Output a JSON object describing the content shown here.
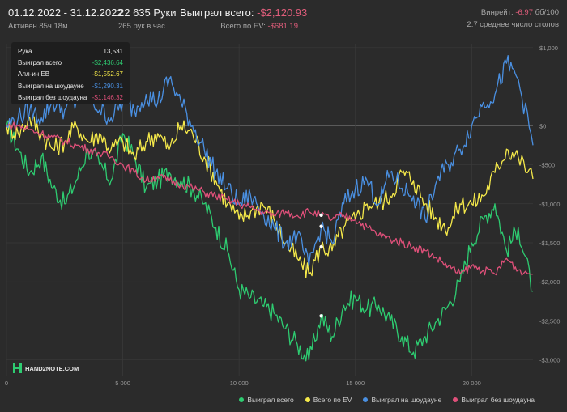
{
  "header": {
    "date_range": "01.12.2022 - 31.12.2022",
    "active": "Активен 85ч 18м",
    "hands": "22 635 Руки",
    "hands_rate": "265 рук в час",
    "won_label": "Выиграл всего:",
    "won_value": "-$2,120.93",
    "ev_label": "Всего по EV:",
    "ev_value": "-$681.19",
    "winrate_label": "Винрейт:",
    "winrate_value": "-6.97",
    "winrate_per": "бб/100",
    "tables_avg": "2.7 среднее число столов"
  },
  "tooltip": {
    "rows": [
      {
        "label": "Рука",
        "value": "13,531",
        "color": "#f0f0f0"
      },
      {
        "label": "Выиграл всего",
        "value": "-$2,436.64",
        "color": "#2ecc71"
      },
      {
        "label": "Алл-ин ЕВ",
        "value": "-$1,552.67",
        "color": "#f5e94a"
      },
      {
        "label": "Выиграл на шоудауне",
        "value": "-$1,290.31",
        "color": "#4a90e2"
      },
      {
        "label": "Выиграл без шоудауна",
        "value": "-$1,146.32",
        "color": "#e0507a"
      }
    ]
  },
  "logo_text": "HAND2NOTE.COM",
  "chart_data": {
    "type": "line",
    "x_ticks": [
      0,
      5000,
      10000,
      15000,
      20000
    ],
    "x_tick_labels": [
      "0",
      "5 000",
      "10 000",
      "15 000",
      "20 000"
    ],
    "y_ticks": [
      1000,
      0,
      -500,
      -1000,
      -1500,
      -2000,
      -2500,
      -3000
    ],
    "y_tick_labels": [
      "$1,000",
      "$0",
      "-$500",
      "-$1,000",
      "-$1,500",
      "-$2,000",
      "-$2,500",
      "-$3,000"
    ],
    "xlim": [
      0,
      22635
    ],
    "ylim": [
      -3200,
      1050
    ],
    "legend_position": "bottom-right",
    "series": [
      {
        "name": "Выиграл всего",
        "color": "#2ecc71",
        "x": [
          0,
          500,
          1000,
          1500,
          2000,
          2500,
          3000,
          3500,
          4000,
          4500,
          5000,
          5500,
          6000,
          6500,
          7000,
          7500,
          8000,
          8500,
          9000,
          9500,
          10000,
          10500,
          11000,
          11500,
          12000,
          12500,
          13000,
          13531,
          14000,
          14500,
          15000,
          15500,
          16000,
          16500,
          17000,
          17500,
          18000,
          18500,
          19000,
          19500,
          20000,
          20500,
          21000,
          21500,
          22000,
          22635
        ],
        "y": [
          0,
          -300,
          -600,
          -400,
          -800,
          -1000,
          -700,
          -300,
          -500,
          -700,
          -100,
          -400,
          -800,
          -700,
          -600,
          -700,
          -800,
          -1000,
          -1300,
          -1600,
          -2100,
          -2200,
          -2300,
          -2400,
          -2600,
          -2800,
          -3000,
          -2436,
          -2700,
          -2300,
          -2200,
          -2350,
          -2300,
          -2500,
          -2700,
          -2900,
          -2700,
          -2500,
          -2300,
          -2000,
          -1500,
          -1200,
          -1000,
          -1600,
          -1300,
          -2120
        ]
      },
      {
        "name": "Всего по EV",
        "color": "#f5e94a",
        "x": [
          0,
          500,
          1000,
          1500,
          2000,
          2500,
          3000,
          3500,
          4000,
          4500,
          5000,
          5500,
          6000,
          6500,
          7000,
          7500,
          8000,
          8500,
          9000,
          9500,
          10000,
          10500,
          11000,
          11500,
          12000,
          12500,
          13000,
          13531,
          14000,
          14500,
          15000,
          15500,
          16000,
          16500,
          17000,
          17500,
          18000,
          18500,
          19000,
          19500,
          20000,
          20500,
          21000,
          21500,
          22000,
          22635
        ],
        "y": [
          0,
          -100,
          100,
          -100,
          -300,
          -200,
          0,
          -200,
          -100,
          -300,
          -200,
          -400,
          -200,
          -100,
          -300,
          0,
          -100,
          -400,
          -700,
          -1000,
          -1200,
          -1100,
          -1000,
          -1200,
          -1500,
          -1700,
          -1900,
          -1552,
          -1600,
          -1300,
          -1200,
          -1000,
          -1000,
          -900,
          -600,
          -700,
          -1000,
          -1200,
          -1300,
          -1000,
          -1000,
          -900,
          -600,
          -300,
          -400,
          -681
        ]
      },
      {
        "name": "Выиграл на шоудауне",
        "color": "#4a90e2",
        "x": [
          0,
          500,
          1000,
          1500,
          2000,
          2500,
          3000,
          3500,
          4000,
          4500,
          5000,
          5500,
          6000,
          6500,
          7000,
          7500,
          8000,
          8500,
          9000,
          9500,
          10000,
          10500,
          11000,
          11500,
          12000,
          12500,
          13000,
          13531,
          14000,
          14500,
          15000,
          15500,
          16000,
          16500,
          17000,
          17500,
          18000,
          18500,
          19000,
          19500,
          20000,
          20500,
          21000,
          21500,
          22000,
          22635
        ],
        "y": [
          0,
          100,
          200,
          100,
          300,
          200,
          300,
          400,
          200,
          100,
          300,
          200,
          400,
          300,
          600,
          300,
          0,
          -300,
          -600,
          -800,
          -1000,
          -900,
          -1100,
          -1300,
          -1500,
          -1400,
          -1800,
          -1290,
          -1500,
          -1000,
          -800,
          -700,
          -1000,
          -600,
          -800,
          -900,
          -1200,
          -700,
          -500,
          -300,
          0,
          300,
          400,
          800,
          600,
          -250
        ]
      },
      {
        "name": "Выиграл без шоудауна",
        "color": "#e0507a",
        "x": [
          0,
          500,
          1000,
          1500,
          2000,
          2500,
          3000,
          3500,
          4000,
          4500,
          5000,
          5500,
          6000,
          6500,
          7000,
          7500,
          8000,
          8500,
          9000,
          9500,
          10000,
          10500,
          11000,
          11500,
          12000,
          12500,
          13000,
          13531,
          14000,
          14500,
          15000,
          15500,
          16000,
          16500,
          17000,
          17500,
          18000,
          18500,
          19000,
          19500,
          20000,
          20500,
          21000,
          21500,
          22000,
          22635
        ],
        "y": [
          0,
          0,
          -50,
          -100,
          -150,
          -200,
          -250,
          -300,
          -350,
          -400,
          -500,
          -600,
          -700,
          -650,
          -700,
          -750,
          -800,
          -850,
          -900,
          -950,
          -1000,
          -1050,
          -1100,
          -1150,
          -1100,
          -1150,
          -1100,
          -1146,
          -1200,
          -1150,
          -1200,
          -1300,
          -1400,
          -1450,
          -1500,
          -1550,
          -1600,
          -1700,
          -1800,
          -1900,
          -1800,
          -1850,
          -1900,
          -1700,
          -1850,
          -1900
        ]
      }
    ]
  }
}
